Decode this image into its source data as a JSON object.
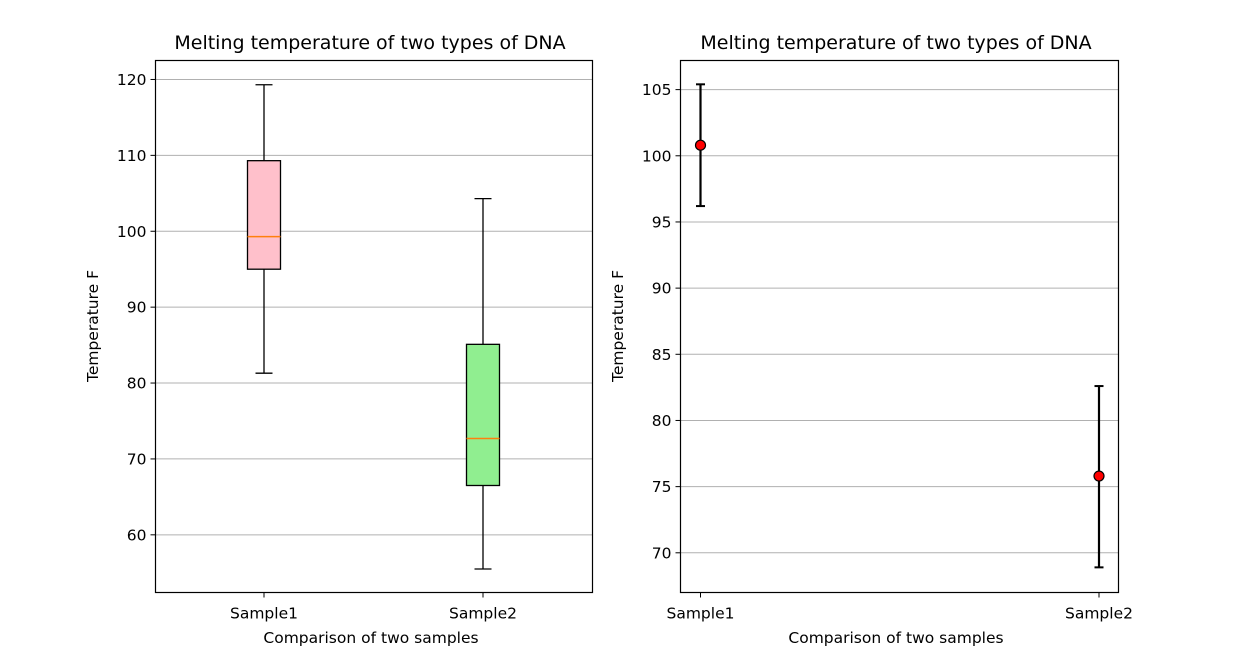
{
  "chart_data": [
    {
      "type": "box",
      "title": "Melting temperature of two types of DNA",
      "xlabel": "Comparison of two samples",
      "ylabel": "Temperature F",
      "categories": [
        "Sample1",
        "Sample2"
      ],
      "ylim": [
        52.4,
        122.5
      ],
      "yticks": [
        60,
        70,
        80,
        90,
        100,
        110,
        120
      ],
      "grid": "y",
      "boxes": [
        {
          "name": "Sample1",
          "whislo": 81.3,
          "q1": 95.0,
          "median": 99.3,
          "q3": 109.3,
          "whishi": 119.3,
          "color": "#ffc0cb"
        },
        {
          "name": "Sample2",
          "whislo": 55.5,
          "q1": 66.5,
          "median": 72.7,
          "q3": 85.1,
          "whishi": 104.3,
          "color": "#90ee90"
        }
      ],
      "median_color": "#ff7f0e"
    },
    {
      "type": "errorbar",
      "title": "Melting temperature of two types of DNA",
      "xlabel": "Comparison of two samples",
      "ylabel": "Temperature F",
      "categories": [
        "Sample1",
        "Sample2"
      ],
      "ylim": [
        67.0,
        107.2
      ],
      "yticks": [
        70,
        75,
        80,
        85,
        90,
        95,
        100,
        105
      ],
      "grid": "y",
      "points": [
        {
          "name": "Sample1",
          "mean": 100.8,
          "lower": 96.2,
          "upper": 105.4
        },
        {
          "name": "Sample2",
          "mean": 75.8,
          "lower": 68.9,
          "upper": 82.6
        }
      ],
      "marker_color": "#ff0000"
    }
  ]
}
